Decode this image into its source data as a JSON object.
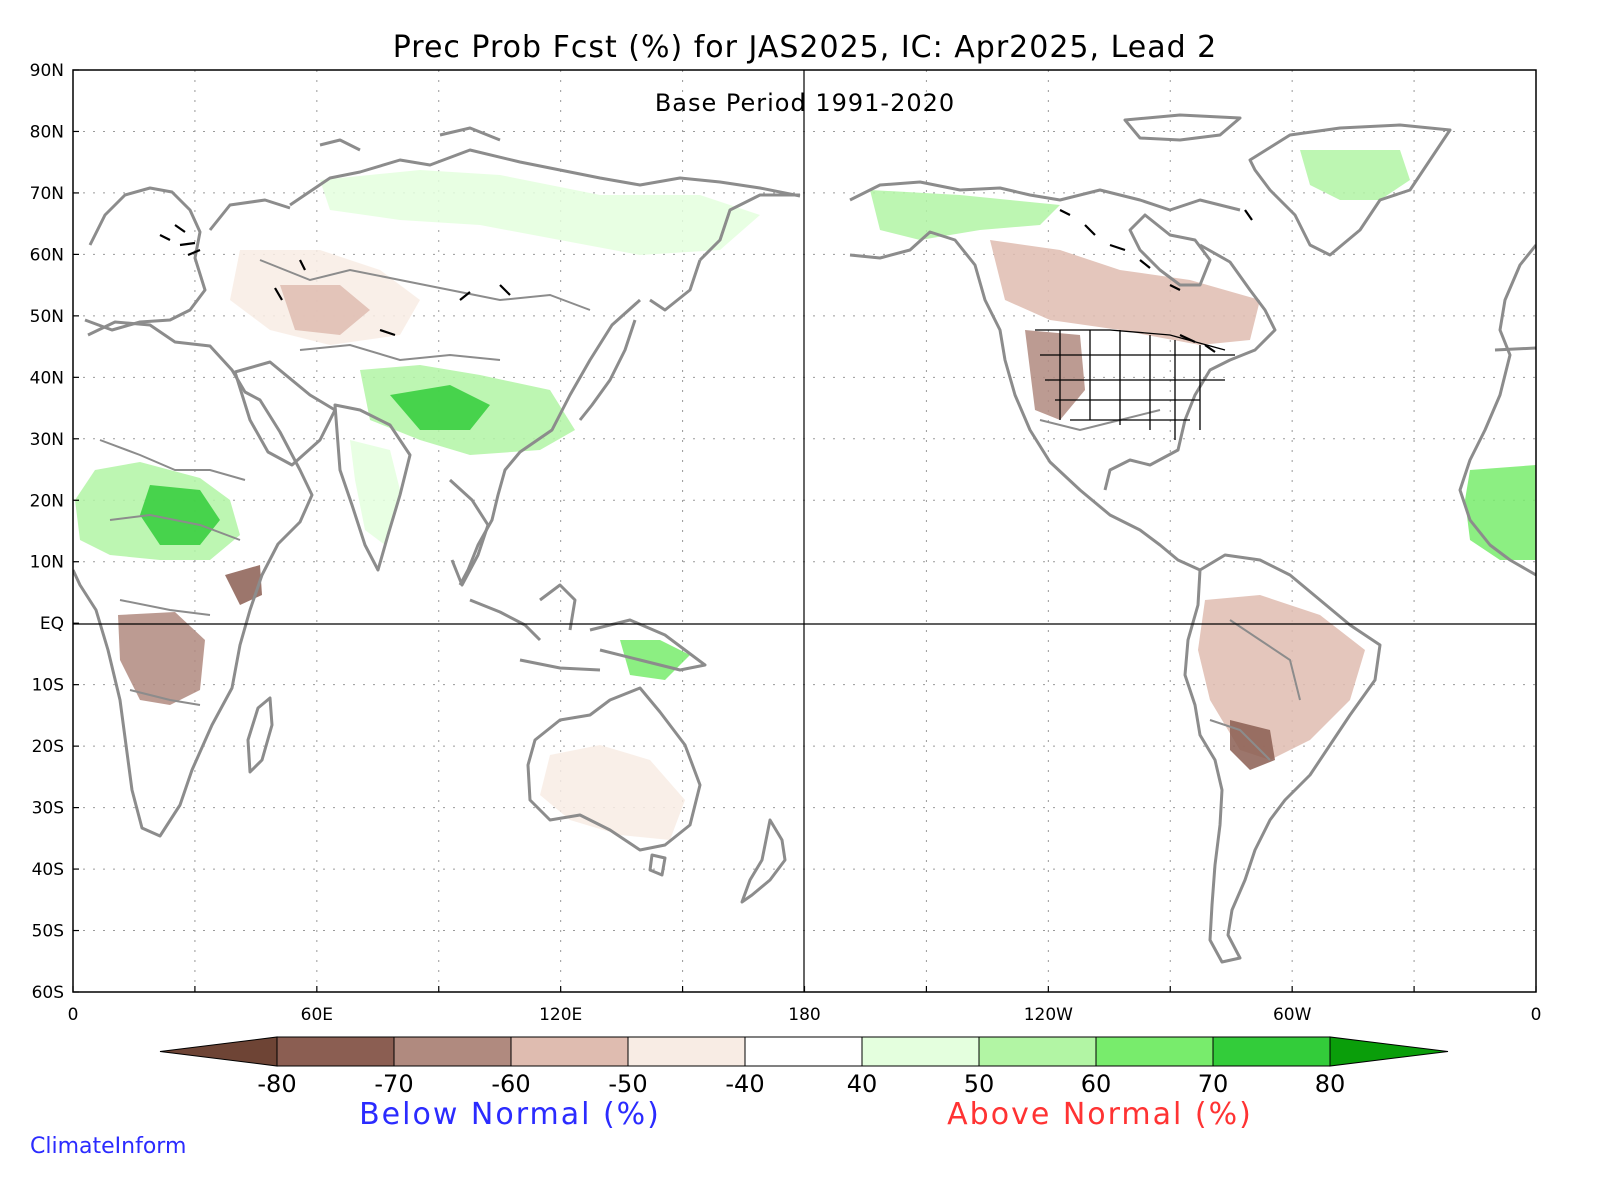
{
  "title": "Prec Prob Fcst (%) for JAS2025, IC: Apr2025, Lead 2",
  "subtitle": "Base Period 1991-2020",
  "axes": {
    "lat_labels": [
      "90N",
      "80N",
      "70N",
      "60N",
      "50N",
      "40N",
      "30N",
      "20N",
      "10N",
      "EQ",
      "10S",
      "20S",
      "30S",
      "40S",
      "50S",
      "60S"
    ],
    "lon_labels": [
      "0",
      "60E",
      "120E",
      "180",
      "120W",
      "60W",
      "0"
    ]
  },
  "colorbar": {
    "ticks": [
      "-80",
      "-70",
      "-60",
      "-50",
      "-40",
      "40",
      "50",
      "60",
      "70",
      "80"
    ],
    "colors": [
      "#6e4435",
      "#8b5e52",
      "#b08a7f",
      "#dfbcb0",
      "#f8ece4",
      "#ffffff",
      "#e4ffde",
      "#b2f5a4",
      "#78ec6c",
      "#33cc3a",
      "#0a9e0a"
    ]
  },
  "legend": {
    "below_label": "Below Normal (%)",
    "above_label": "Above Normal (%)",
    "below_color": "#2b2bff",
    "above_color": "#ff3333"
  },
  "credit": {
    "text": "ClimateInform",
    "color": "#2b2bff"
  }
}
